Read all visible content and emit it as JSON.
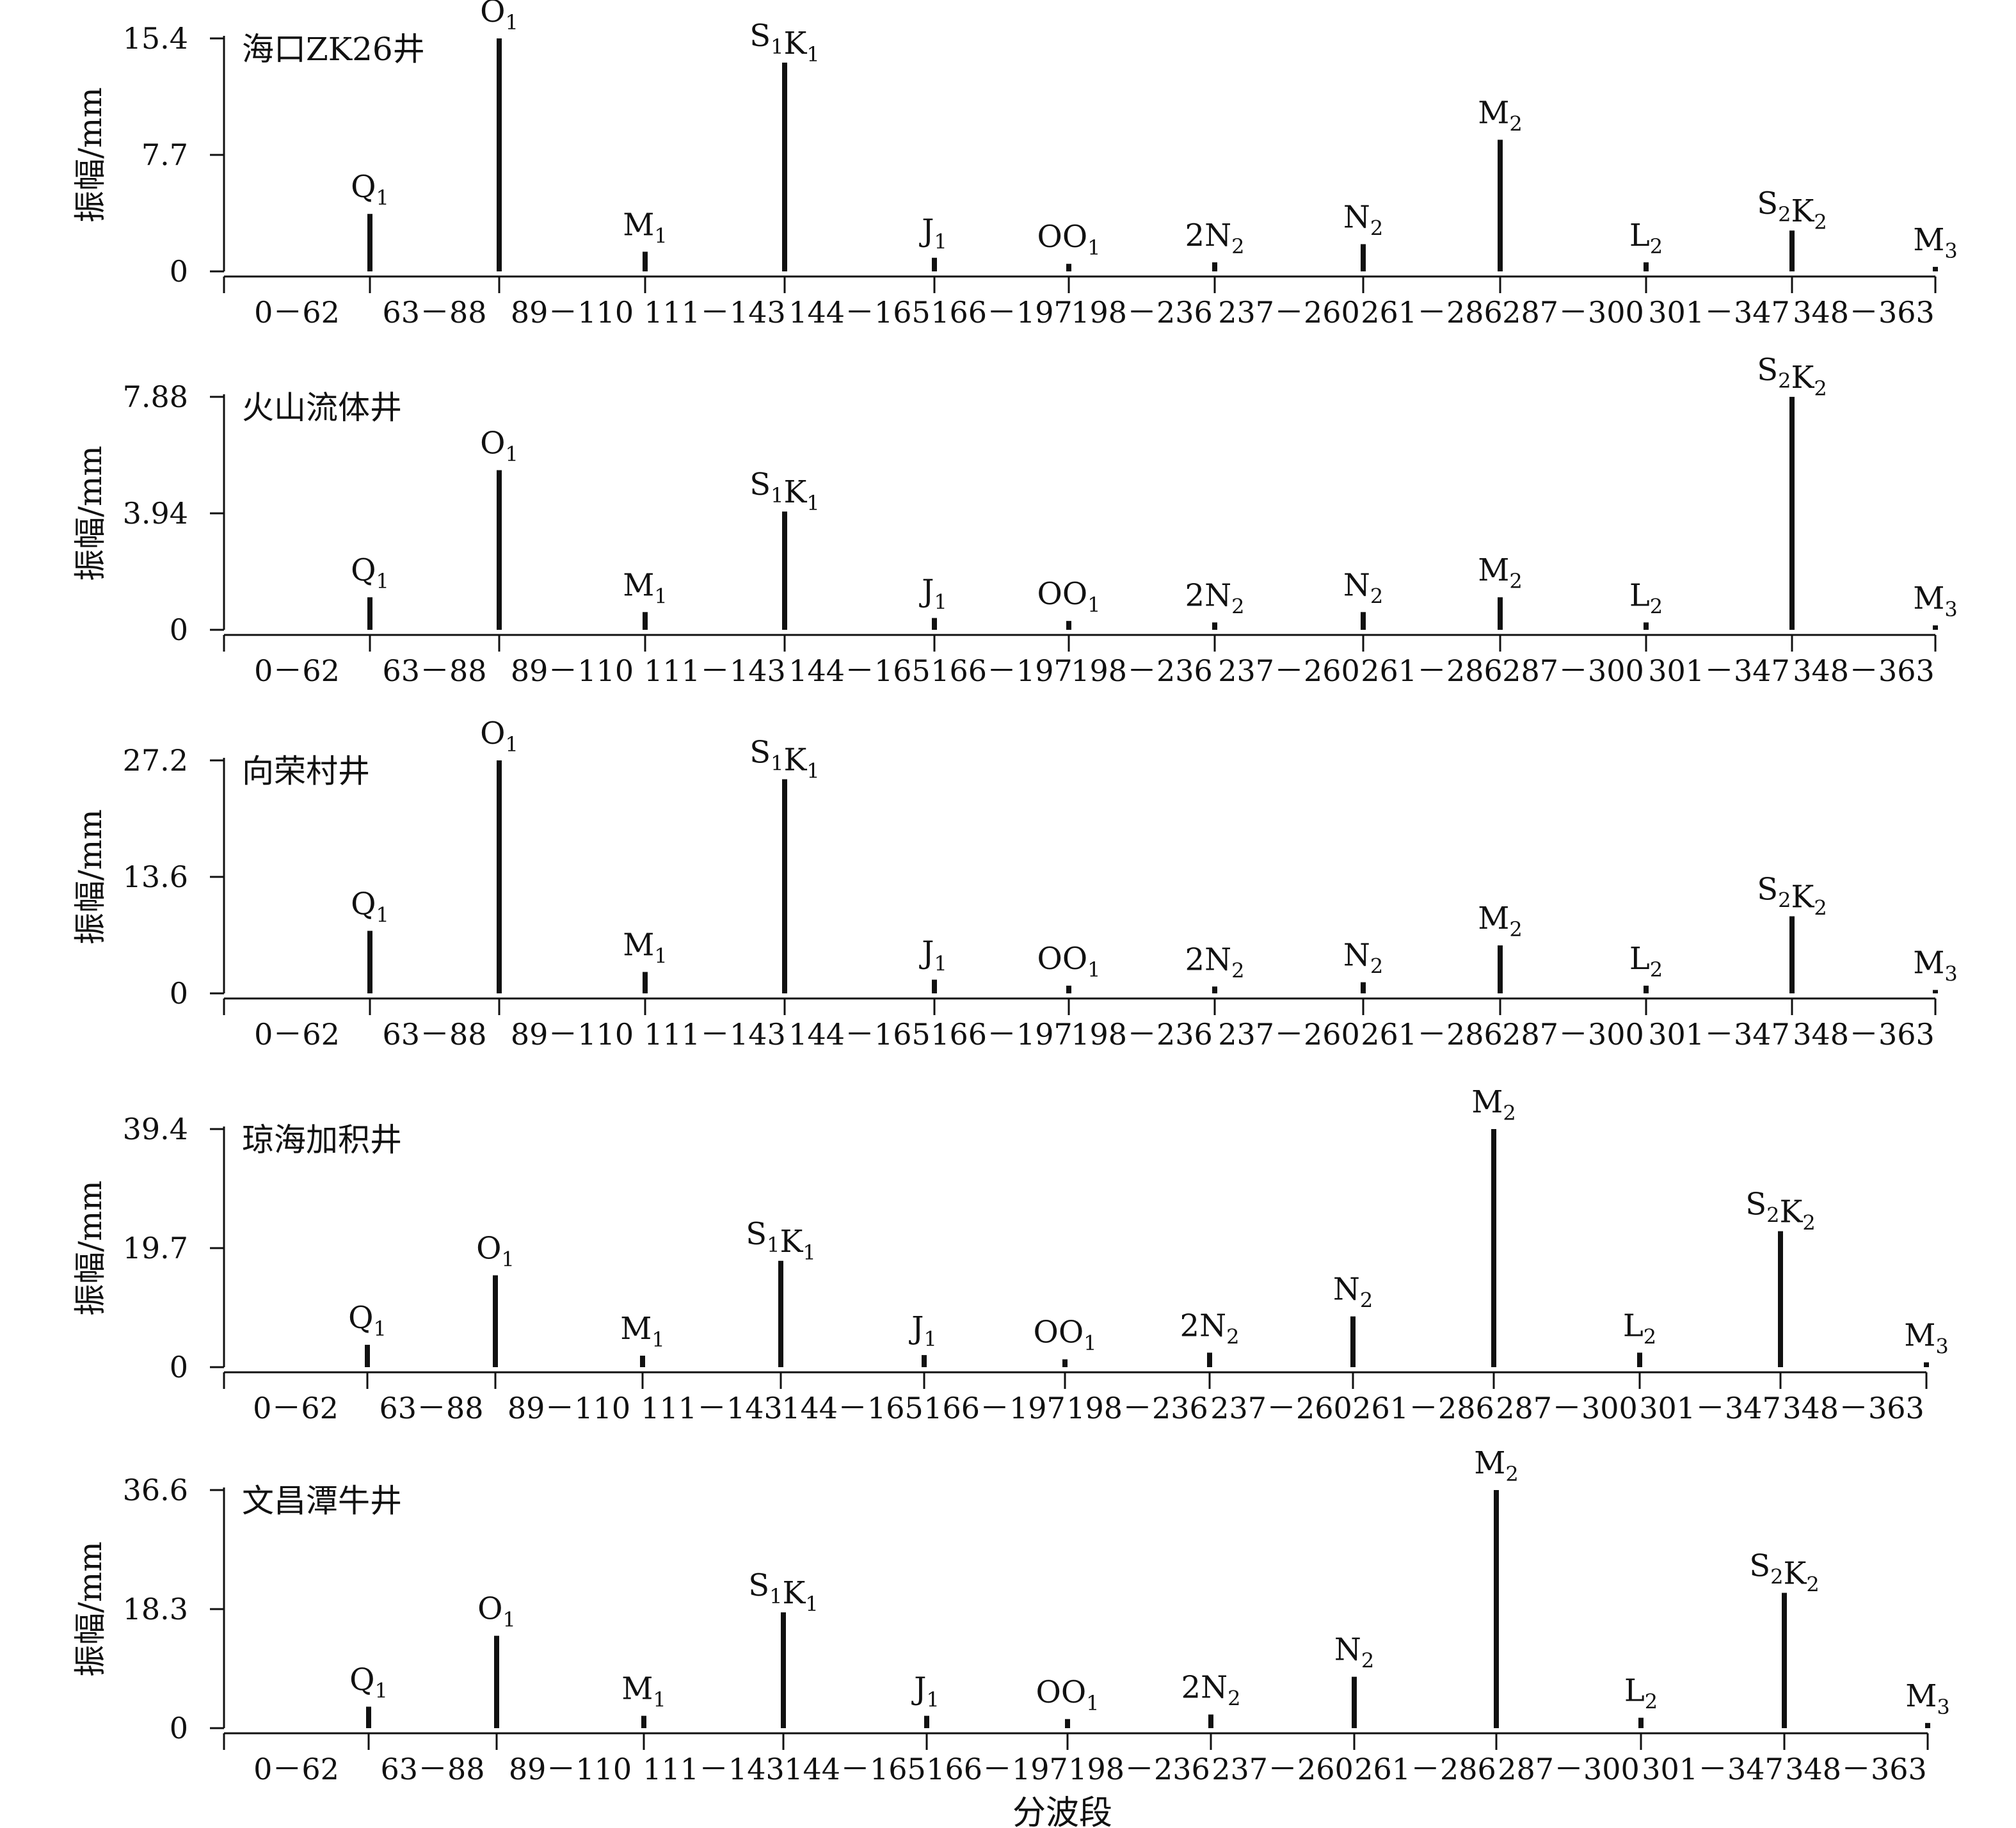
{
  "chart_data": [
    {
      "type": "bar",
      "title": "海口ZK26井",
      "ylabel": "振幅/mm",
      "xlabel": "",
      "ylim": [
        0,
        15.4
      ],
      "yticks": [
        "0",
        "7.7",
        "15.4"
      ],
      "xtick_labels": [
        "0－62",
        "63－88",
        "89－110",
        "111－143",
        "144－165",
        "166－197",
        "198－236",
        "237－260",
        "261－286",
        "287－300",
        "301－347",
        "348－363"
      ],
      "components": [
        {
          "name": "Q",
          "sub": "1",
          "value": 3.8
        },
        {
          "name": "O",
          "sub": "1",
          "value": 15.4
        },
        {
          "name": "M",
          "sub": "1",
          "value": 1.3
        },
        {
          "name": "S",
          "sub": "1",
          "name2": "K",
          "sub2": "1",
          "value": 13.8
        },
        {
          "name": "J",
          "sub": "1",
          "value": 0.9
        },
        {
          "name": "OO",
          "sub": "1",
          "value": 0.5
        },
        {
          "name": "2N",
          "sub": "2",
          "value": 0.6
        },
        {
          "name": "N",
          "sub": "2",
          "value": 1.8
        },
        {
          "name": "M",
          "sub": "2",
          "value": 8.7
        },
        {
          "name": "L",
          "sub": "2",
          "value": 0.6
        },
        {
          "name": "S",
          "sub": "2",
          "name2": "K",
          "sub2": "2",
          "value": 2.7
        },
        {
          "name": "M",
          "sub": "3",
          "value": 0.3
        }
      ]
    },
    {
      "type": "bar",
      "title": "火山流体井",
      "ylabel": "振幅/mm",
      "xlabel": "",
      "ylim": [
        0,
        7.88
      ],
      "yticks": [
        "0",
        "3.94",
        "7.88"
      ],
      "xtick_labels": [
        "0－62",
        "63－88",
        "89－110",
        "111－143",
        "144－165",
        "166－197",
        "198－236",
        "237－260",
        "261－286",
        "287－300",
        "301－347",
        "348－363"
      ],
      "components": [
        {
          "name": "Q",
          "sub": "1",
          "value": 1.1
        },
        {
          "name": "O",
          "sub": "1",
          "value": 5.4
        },
        {
          "name": "M",
          "sub": "1",
          "value": 0.6
        },
        {
          "name": "S",
          "sub": "1",
          "name2": "K",
          "sub2": "1",
          "value": 4.0
        },
        {
          "name": "J",
          "sub": "1",
          "value": 0.4
        },
        {
          "name": "OO",
          "sub": "1",
          "value": 0.3
        },
        {
          "name": "2N",
          "sub": "2",
          "value": 0.25
        },
        {
          "name": "N",
          "sub": "2",
          "value": 0.6
        },
        {
          "name": "M",
          "sub": "2",
          "value": 1.1
        },
        {
          "name": "L",
          "sub": "2",
          "value": 0.25
        },
        {
          "name": "S",
          "sub": "2",
          "name2": "K",
          "sub2": "2",
          "value": 7.88
        },
        {
          "name": "M",
          "sub": "3",
          "value": 0.15
        }
      ]
    },
    {
      "type": "bar",
      "title": "向荣村井",
      "ylabel": "振幅/mm",
      "xlabel": "",
      "ylim": [
        0,
        27.2
      ],
      "yticks": [
        "0",
        "13.6",
        "27.2"
      ],
      "xtick_labels": [
        "0－62",
        "63－88",
        "89－110",
        "111－143",
        "144－165",
        "166－197",
        "198－236",
        "237－260",
        "261－286",
        "287－300",
        "301－347",
        "348－363"
      ],
      "components": [
        {
          "name": "Q",
          "sub": "1",
          "value": 7.3
        },
        {
          "name": "O",
          "sub": "1",
          "value": 27.2
        },
        {
          "name": "M",
          "sub": "1",
          "value": 2.5
        },
        {
          "name": "S",
          "sub": "1",
          "name2": "K",
          "sub2": "1",
          "value": 25.0
        },
        {
          "name": "J",
          "sub": "1",
          "value": 1.6
        },
        {
          "name": "OO",
          "sub": "1",
          "value": 0.9
        },
        {
          "name": "2N",
          "sub": "2",
          "value": 0.8
        },
        {
          "name": "N",
          "sub": "2",
          "value": 1.3
        },
        {
          "name": "M",
          "sub": "2",
          "value": 5.6
        },
        {
          "name": "L",
          "sub": "2",
          "value": 0.9
        },
        {
          "name": "S",
          "sub": "2",
          "name2": "K",
          "sub2": "2",
          "value": 9.0
        },
        {
          "name": "M",
          "sub": "3",
          "value": 0.4
        }
      ]
    },
    {
      "type": "bar",
      "title": "琼海加积井",
      "ylabel": "振幅/mm",
      "xlabel": "",
      "ylim": [
        0,
        39.4
      ],
      "yticks": [
        "0",
        "19.7",
        "39.4"
      ],
      "xtick_labels": [
        "0－62",
        "63－88",
        "89－110",
        "111－143",
        "144－165",
        "166－197",
        "198－236",
        "237－260",
        "261－286",
        "287－300",
        "301－347",
        "348－363"
      ],
      "components": [
        {
          "name": "Q",
          "sub": "1",
          "value": 3.7
        },
        {
          "name": "O",
          "sub": "1",
          "value": 15.2
        },
        {
          "name": "M",
          "sub": "1",
          "value": 1.9
        },
        {
          "name": "S",
          "sub": "1",
          "name2": "K",
          "sub2": "1",
          "value": 17.6
        },
        {
          "name": "J",
          "sub": "1",
          "value": 2.0
        },
        {
          "name": "OO",
          "sub": "1",
          "value": 1.3
        },
        {
          "name": "2N",
          "sub": "2",
          "value": 2.4
        },
        {
          "name": "N",
          "sub": "2",
          "value": 8.4
        },
        {
          "name": "M",
          "sub": "2",
          "value": 39.4
        },
        {
          "name": "L",
          "sub": "2",
          "value": 2.4
        },
        {
          "name": "S",
          "sub": "2",
          "name2": "K",
          "sub2": "2",
          "value": 22.5
        },
        {
          "name": "M",
          "sub": "3",
          "value": 0.8
        }
      ]
    },
    {
      "type": "bar",
      "title": "文昌潭牛井",
      "ylabel": "振幅/mm",
      "xlabel": "分波段",
      "ylim": [
        0,
        36.6
      ],
      "yticks": [
        "0",
        "18.3",
        "36.6"
      ],
      "xtick_labels": [
        "0－62",
        "63－88",
        "89－110",
        "111－143",
        "144－165",
        "166－197",
        "198－236",
        "237－260",
        "261－286",
        "287－300",
        "301－347",
        "348－363"
      ],
      "components": [
        {
          "name": "Q",
          "sub": "1",
          "value": 3.3
        },
        {
          "name": "O",
          "sub": "1",
          "value": 14.2
        },
        {
          "name": "M",
          "sub": "1",
          "value": 1.9
        },
        {
          "name": "S",
          "sub": "1",
          "name2": "K",
          "sub2": "1",
          "value": 17.8
        },
        {
          "name": "J",
          "sub": "1",
          "value": 1.9
        },
        {
          "name": "OO",
          "sub": "1",
          "value": 1.4
        },
        {
          "name": "2N",
          "sub": "2",
          "value": 2.1
        },
        {
          "name": "N",
          "sub": "2",
          "value": 7.9
        },
        {
          "name": "M",
          "sub": "2",
          "value": 36.6
        },
        {
          "name": "L",
          "sub": "2",
          "value": 1.6
        },
        {
          "name": "S",
          "sub": "2",
          "name2": "K",
          "sub2": "2",
          "value": 20.8
        },
        {
          "name": "M",
          "sub": "3",
          "value": 0.8
        }
      ]
    }
  ]
}
